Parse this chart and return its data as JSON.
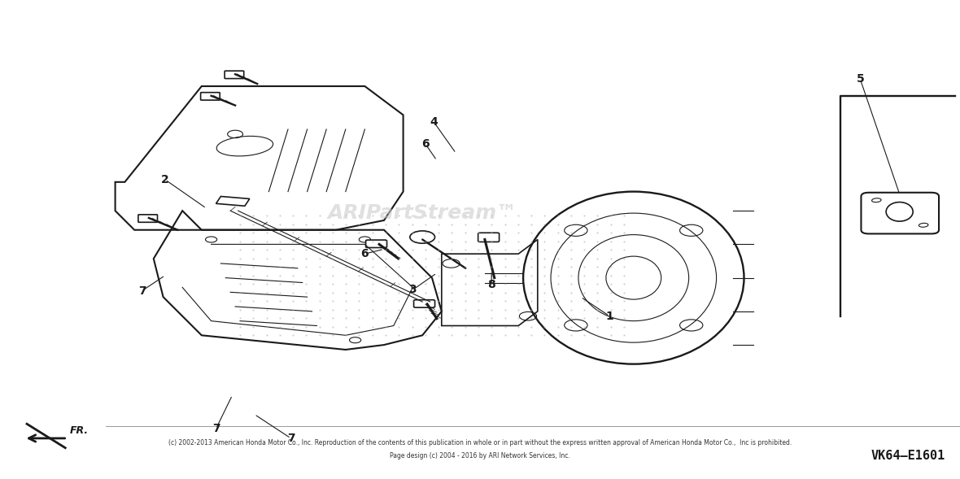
{
  "background_color": "#ffffff",
  "border_color": "#000000",
  "title": "",
  "copyright_line1": "(c) 2002-2013 American Honda Motor Co., Inc. Reproduction of the contents of this publication in whole or in part without the express written approval of American Honda Motor Co.,  Inc is prohibited.",
  "copyright_line2": "Page design (c) 2004 - 2016 by ARI Network Services, Inc.",
  "part_number": "VK64—E1601",
  "watermark": "ARIPartStream™",
  "watermark_color": "#cccccc",
  "arrow_label": "FR.",
  "label_color": "#000000"
}
